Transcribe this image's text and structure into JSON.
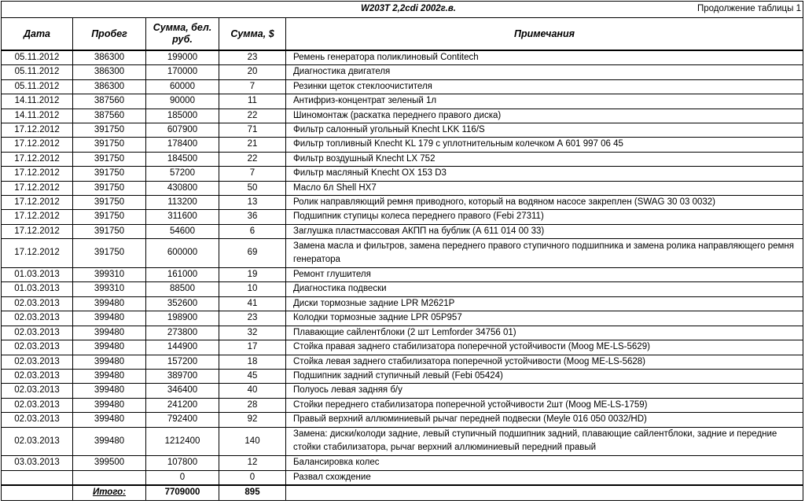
{
  "title": "W203T 2,2cdi 2002г.в.",
  "continuation": "Продолжение таблицы 1",
  "columns": [
    "Дата",
    "Пробег",
    "Сумма, бел. руб.",
    "Сумма, $",
    "Примечания"
  ],
  "rows": [
    [
      "05.11.2012",
      "386300",
      "199000",
      "23",
      "Ремень генератора поликлиновый Contitech"
    ],
    [
      "05.11.2012",
      "386300",
      "170000",
      "20",
      "Диагностика двигателя"
    ],
    [
      "05.11.2012",
      "386300",
      "60000",
      "7",
      "Резинки щеток стеклоочистителя"
    ],
    [
      "14.11.2012",
      "387560",
      "90000",
      "11",
      "Антифриз-концентрат зеленый 1л"
    ],
    [
      "14.11.2012",
      "387560",
      "185000",
      "22",
      "Шиномонтаж (раскатка переднего правого диска)"
    ],
    [
      "17.12.2012",
      "391750",
      "607900",
      "71",
      "Фильтр салонный угольный Knecht LKK 116/S"
    ],
    [
      "17.12.2012",
      "391750",
      "178400",
      "21",
      "Фильтр топливный Knecht KL 179 с уплотнительным колечком А  601 997 06 45"
    ],
    [
      "17.12.2012",
      "391750",
      "184500",
      "22",
      "Фильтр воздушный Knecht LX 752"
    ],
    [
      "17.12.2012",
      "391750",
      "57200",
      "7",
      "Фильтр масляный Knecht OX 153 D3"
    ],
    [
      "17.12.2012",
      "391750",
      "430800",
      "50",
      "Масло 6л Shell HX7"
    ],
    [
      "17.12.2012",
      "391750",
      "113200",
      "13",
      "Ролик направляющий ремня приводного, который на водяном насосе закреплен (SWAG 30 03 0032)"
    ],
    [
      "17.12.2012",
      "391750",
      "311600",
      "36",
      "Подшипник ступицы колеса переднего правого (Febi 27311)"
    ],
    [
      "17.12.2012",
      "391750",
      "54600",
      "6",
      "Заглушка пластмассовая АКПП на бублик (А 611 014 00 33)"
    ],
    [
      "17.12.2012",
      "391750",
      "600000",
      "69",
      "Замена масла и фильтров, замена переднего правого ступичного подшипника и замена ролика направляющего ремня генератора"
    ],
    [
      "01.03.2013",
      "399310",
      "161000",
      "19",
      "Ремонт глушителя"
    ],
    [
      "01.03.2013",
      "399310",
      "88500",
      "10",
      "Диагностика подвески"
    ],
    [
      "02.03.2013",
      "399480",
      "352600",
      "41",
      "Диски тормозные задние LPR M2621P"
    ],
    [
      "02.03.2013",
      "399480",
      "198900",
      "23",
      "Колодки тормозные задние LPR 05P957"
    ],
    [
      "02.03.2013",
      "399480",
      "273800",
      "32",
      "Плавающие сайлентблоки (2 шт Lemforder 34756 01)"
    ],
    [
      "02.03.2013",
      "399480",
      "144900",
      "17",
      "Стойка правая заднего стабилизатора поперечной устойчивости (Moog ME-LS-5629)"
    ],
    [
      "02.03.2013",
      "399480",
      "157200",
      "18",
      "Стойка левая заднего стабилизатора поперечной устойчивости (Moog ME-LS-5628)"
    ],
    [
      "02.03.2013",
      "399480",
      "389700",
      "45",
      "Подшипник задний ступичный левый (Febi 05424)"
    ],
    [
      "02.03.2013",
      "399480",
      "346400",
      "40",
      "Полуось левая задняя б/у"
    ],
    [
      "02.03.2013",
      "399480",
      "241200",
      "28",
      "Стойки переднего стабилизатора поперечной устойчивости 2шт (Moog ME-LS-1759)"
    ],
    [
      "02.03.2013",
      "399480",
      "792400",
      "92",
      "Правый верхний аллюминиевый рычаг передней подвески (Meyle 016 050 0032/HD)"
    ],
    [
      "02.03.2013",
      "399480",
      "1212400",
      "140",
      "Замена: диски/колоди задние, левый ступичный подшипник задний, плавающие сайлентблоки, задние и передние стойки стабилизатора, рычаг верхний аллюминиевый передний правый"
    ],
    [
      "03.03.2013",
      "399500",
      "107800",
      "12",
      "Балансировка колес"
    ],
    [
      "",
      "",
      "0",
      "0",
      "Развал схождение"
    ]
  ],
  "double_rows": [
    13,
    25
  ],
  "total": {
    "label": "Итого:",
    "sum_byr": "7709000",
    "sum_usd": "895"
  }
}
